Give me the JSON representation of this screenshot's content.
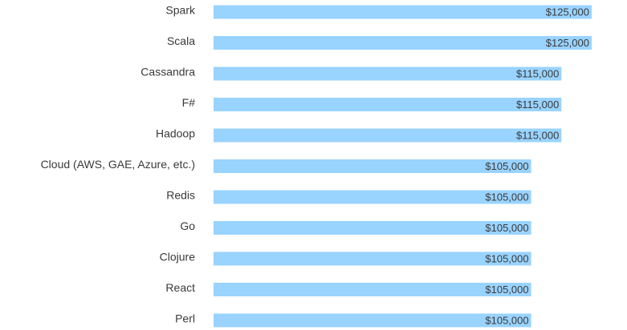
{
  "chart_data": {
    "type": "bar",
    "orientation": "horizontal",
    "categories": [
      "Spark",
      "Scala",
      "Cassandra",
      "F#",
      "Hadoop",
      "Cloud (AWS, GAE, Azure, etc.)",
      "Redis",
      "Go",
      "Clojure",
      "React",
      "Perl"
    ],
    "values": [
      125000,
      125000,
      115000,
      115000,
      115000,
      105000,
      105000,
      105000,
      105000,
      105000,
      105000
    ],
    "value_labels": [
      "$125,000",
      "$125,000",
      "$115,000",
      "$115,000",
      "$115,000",
      "$105,000",
      "$105,000",
      "$105,000",
      "$105,000",
      "$105,000",
      "$105,000"
    ],
    "title": "",
    "xlabel": "",
    "ylabel": "",
    "xlim": [
      0,
      125000
    ],
    "grid": false,
    "legend": "none",
    "bar_color": "#99d3ff",
    "text_color": "#3a3a3a"
  }
}
